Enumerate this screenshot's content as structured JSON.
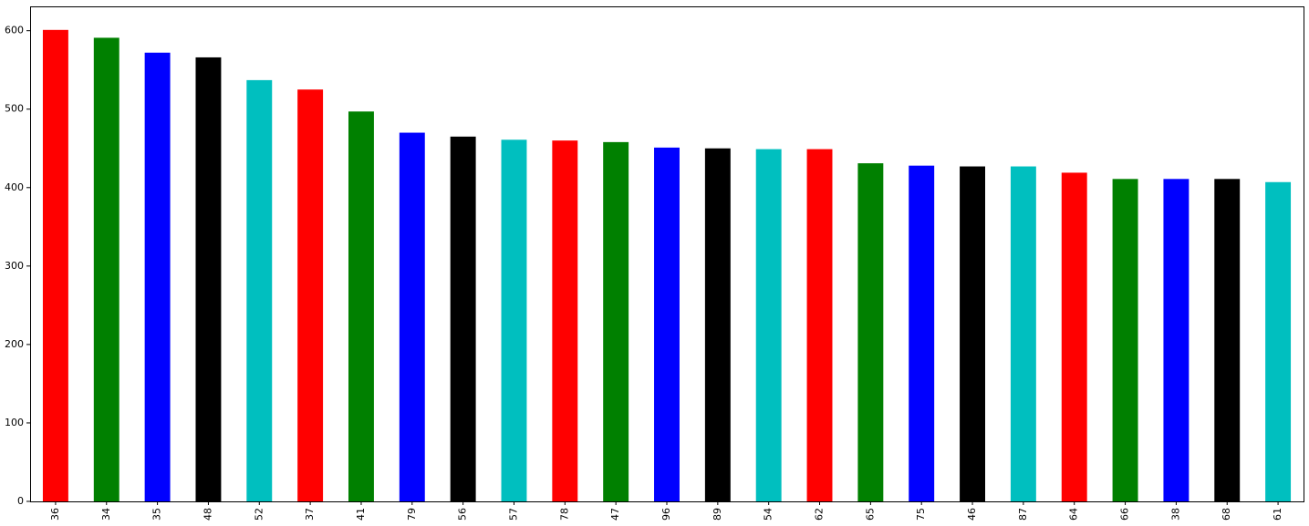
{
  "chart_data": {
    "type": "bar",
    "title": "",
    "xlabel": "",
    "ylabel": "",
    "categories": [
      "36",
      "34",
      "35",
      "48",
      "52",
      "37",
      "41",
      "79",
      "56",
      "57",
      "78",
      "47",
      "96",
      "89",
      "54",
      "62",
      "65",
      "75",
      "46",
      "87",
      "64",
      "66",
      "38",
      "68",
      "61"
    ],
    "values": [
      601,
      591,
      572,
      566,
      537,
      525,
      497,
      470,
      465,
      461,
      460,
      458,
      451,
      450,
      449,
      449,
      431,
      428,
      427,
      427,
      419,
      411,
      411,
      411,
      407
    ],
    "bar_colors": [
      "#ff0000",
      "#008000",
      "#0000ff",
      "#000000",
      "#00bfbf"
    ],
    "ylim": [
      0,
      631
    ],
    "yticks": [
      0,
      100,
      200,
      300,
      400,
      500,
      600
    ],
    "ytick_labels": [
      "0",
      "100",
      "200",
      "300",
      "400",
      "500",
      "600"
    ],
    "xtick_rotation": "vertical",
    "grid": false,
    "legend": "none"
  }
}
